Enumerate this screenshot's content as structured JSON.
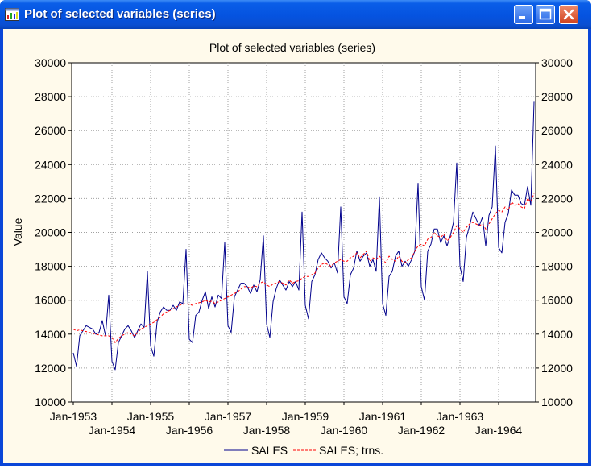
{
  "window": {
    "title": "Plot of selected variables (series)"
  },
  "chart_data": {
    "type": "line",
    "title": "Plot of selected variables (series)",
    "xlabel": "",
    "ylabel": "Value",
    "ylim": [
      10000,
      30000
    ],
    "yticks": [
      10000,
      12000,
      14000,
      16000,
      18000,
      20000,
      22000,
      24000,
      26000,
      28000,
      30000
    ],
    "xticks": [
      "Jan-1953",
      "Jan-1954",
      "Jan-1955",
      "Jan-1956",
      "Jan-1957",
      "Jan-1958",
      "Jan-1959",
      "Jan-1960",
      "Jan-1961",
      "Jan-1962",
      "Jan-1963",
      "Jan-1964"
    ],
    "x_start": "Jan-1953",
    "grid": true,
    "legend_position": "bottom-center",
    "series": [
      {
        "name": "SALES",
        "color": "#00008b",
        "dash": "solid",
        "values": [
          12900,
          12100,
          13900,
          14200,
          14500,
          14400,
          14300,
          14000,
          14100,
          14800,
          13900,
          16300,
          12400,
          11900,
          13500,
          13900,
          14300,
          14500,
          14200,
          13800,
          14200,
          14600,
          14400,
          17700,
          13300,
          12700,
          14700,
          15300,
          15600,
          15400,
          15400,
          15700,
          15400,
          15900,
          15800,
          19000,
          13700,
          13500,
          15100,
          15300,
          16000,
          16500,
          15500,
          16200,
          15600,
          16300,
          16100,
          19400,
          14500,
          14100,
          16200,
          16600,
          17000,
          17000,
          16800,
          16400,
          16900,
          16500,
          17200,
          19800,
          14600,
          13800,
          15900,
          16700,
          17200,
          16900,
          16600,
          17100,
          16800,
          17100,
          16600,
          21200,
          15700,
          14900,
          17100,
          17500,
          18400,
          18800,
          18500,
          18300,
          17900,
          18200,
          17600,
          21500,
          16200,
          15800,
          17500,
          17900,
          18900,
          18300,
          18600,
          18800,
          18000,
          18400,
          17700,
          22100,
          15800,
          15100,
          17400,
          17700,
          18600,
          18900,
          18000,
          18300,
          18000,
          18400,
          18900,
          22900,
          16800,
          16000,
          18900,
          19300,
          20200,
          20200,
          19400,
          19800,
          19200,
          19800,
          20600,
          24100,
          18000,
          17100,
          19700,
          20400,
          21200,
          20800,
          20400,
          20900,
          19200,
          21000,
          21500,
          25100,
          19100,
          18800,
          20600,
          21100,
          22500,
          22200,
          22200,
          21700,
          21600,
          22700,
          21600,
          27700
        ]
      },
      {
        "name": "SALES; trns.",
        "color": "#ff0000",
        "dash": "dashed",
        "values": [
          14300,
          14200,
          14250,
          14200,
          14150,
          14100,
          14050,
          14000,
          13950,
          13900,
          13900,
          13900,
          13800,
          13500,
          13750,
          13900,
          14000,
          14100,
          14000,
          13900,
          14100,
          14300,
          14400,
          14500,
          14600,
          14700,
          14850,
          15000,
          15200,
          15300,
          15400,
          15500,
          15600,
          15700,
          15750,
          15800,
          15750,
          15700,
          15800,
          15850,
          15900,
          16000,
          15900,
          15950,
          15800,
          15900,
          16000,
          16100,
          16200,
          16300,
          16400,
          16500,
          16650,
          16800,
          16800,
          16700,
          16850,
          16800,
          17000,
          17100,
          16900,
          16800,
          16950,
          17000,
          17100,
          17000,
          16900,
          17200,
          17000,
          17100,
          17150,
          17300,
          17400,
          17400,
          17500,
          17600,
          17900,
          18100,
          18200,
          18100,
          18000,
          18200,
          18300,
          18400,
          18300,
          18300,
          18500,
          18600,
          18800,
          18500,
          18700,
          18900,
          18300,
          18500,
          18400,
          18600,
          18400,
          18200,
          18600,
          18400,
          18300,
          18600,
          18300,
          18200,
          18400,
          18500,
          18900,
          19200,
          19300,
          19200,
          19600,
          19700,
          20000,
          19800,
          19700,
          19900,
          19500,
          19700,
          20000,
          20400,
          20200,
          20000,
          20300,
          20500,
          20600,
          20500,
          20400,
          20500,
          20200,
          20500,
          20800,
          21100,
          21300,
          21200,
          21500,
          21300,
          21800,
          21600,
          21700,
          21500,
          21400,
          22000,
          21800,
          22300
        ]
      }
    ]
  }
}
